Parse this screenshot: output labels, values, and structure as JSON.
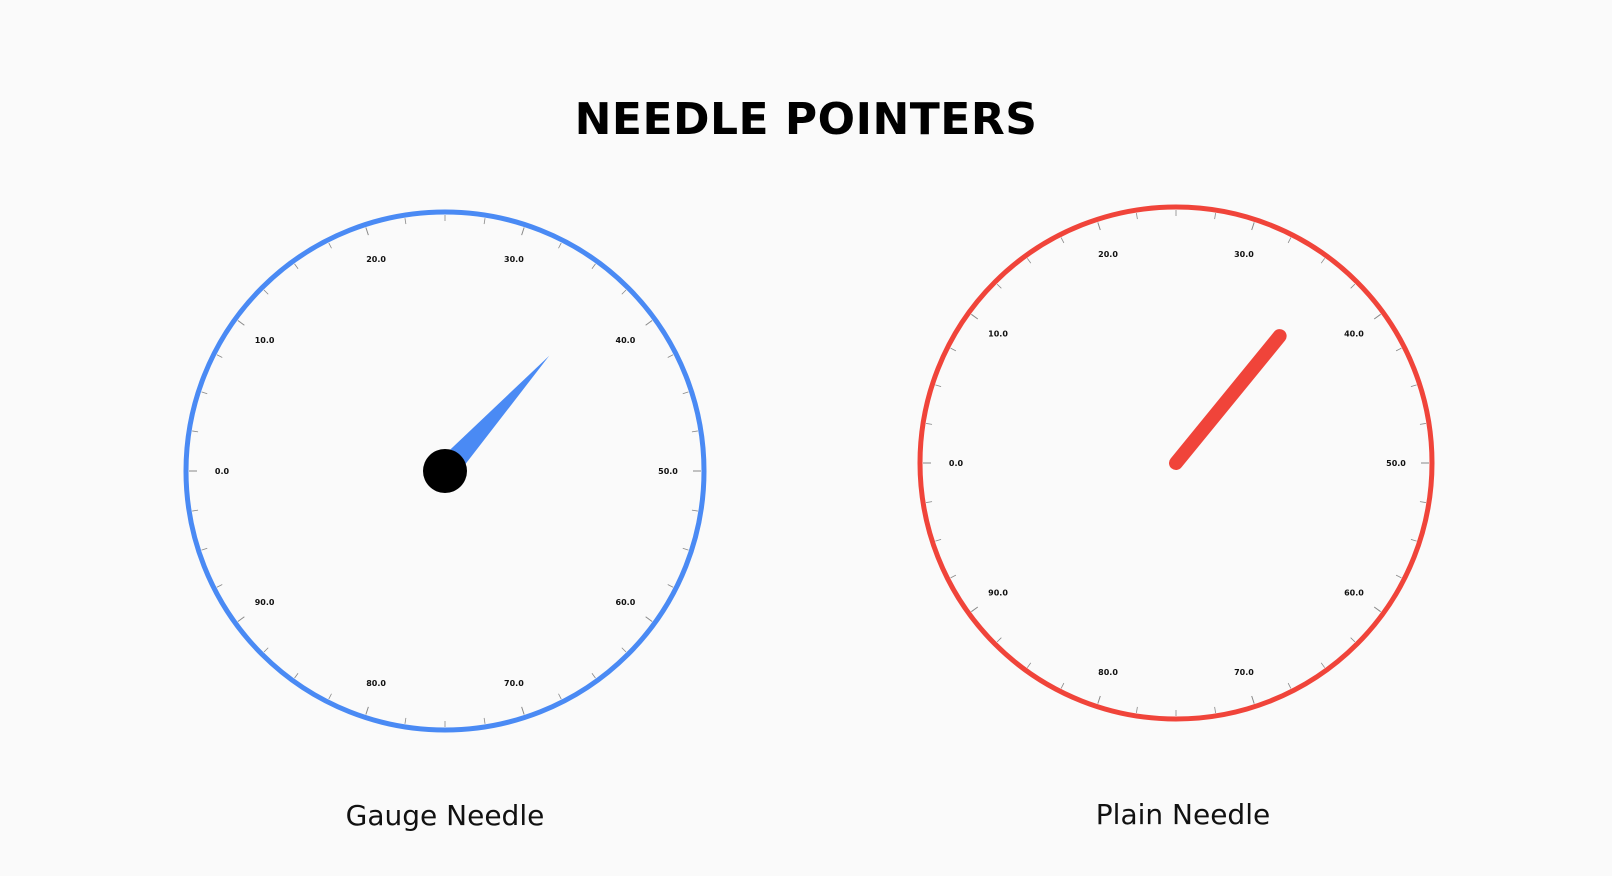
{
  "page": {
    "title": "NEEDLE POINTERS"
  },
  "scale": {
    "min": 0,
    "max": 100,
    "labels": [
      "0.0",
      "10.0",
      "20.0",
      "30.0",
      "40.0",
      "50.0",
      "60.0",
      "70.0",
      "80.0",
      "90.0"
    ]
  },
  "gauges": [
    {
      "id": "gauge-needle",
      "label": "Gauge Needle",
      "ring_color": "#4a8af4",
      "needle_color": "#4a8af4",
      "hub_color": "#000000",
      "needle_style": "tapered",
      "value": 36.7
    },
    {
      "id": "plain-needle",
      "label": "Plain Needle",
      "ring_color": "#f0443a",
      "needle_color": "#f0443a",
      "needle_style": "plain",
      "value": 35.9
    }
  ]
}
